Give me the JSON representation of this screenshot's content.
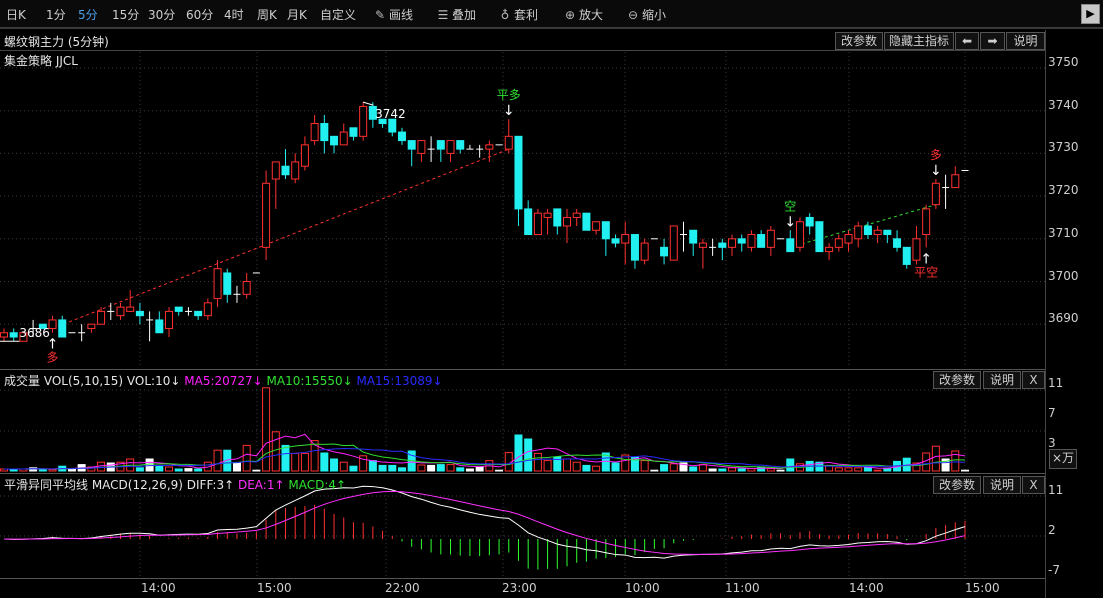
{
  "toolbar": {
    "periods": [
      "日K",
      "1分",
      "5分",
      "15分",
      "30分",
      "60分",
      "4时",
      "周K",
      "月K",
      "自定义"
    ],
    "selected_period": "5分",
    "tools": [
      {
        "label": "画线",
        "icon": "pencil-icon"
      },
      {
        "label": "叠加",
        "icon": "stack-icon"
      },
      {
        "label": "套利",
        "icon": "money-bag-icon"
      },
      {
        "label": "放大",
        "icon": "zoom-in-icon"
      },
      {
        "label": "缩小",
        "icon": "zoom-out-icon"
      }
    ],
    "scroll_right": "▶"
  },
  "main": {
    "title": "螺纹钢主力 (5分钟)",
    "strategy": "集金策略 JJCL",
    "buttons": {
      "params": "改参数",
      "hide": "隐藏主指标",
      "left": "⬅",
      "right": "➡",
      "help": "说明"
    },
    "price_axis": [
      3750,
      3740,
      3730,
      3720,
      3710,
      3700,
      3690
    ],
    "high_label": "3742",
    "low_label": "3686"
  },
  "volume_panel": {
    "name": "成交量 VOL(5,10,15) VOL:10↓",
    "ma5": "MA5:20727↓",
    "ma10": "MA10:15550↓",
    "ma15": "MA15:13089↓",
    "buttons": {
      "params": "改参数",
      "help": "说明",
      "close": "X"
    },
    "axis": [
      "11",
      "7",
      "3"
    ],
    "unit": "×万"
  },
  "macd_panel": {
    "name": "平滑异同平均线 MACD(12,26,9) DIFF:3↑",
    "dea": "DEA:1↑",
    "macd": "MACD:4↑",
    "buttons": {
      "params": "改参数",
      "help": "说明",
      "close": "X"
    },
    "axis": [
      "11",
      "2",
      "-7"
    ]
  },
  "time_axis": [
    "14:00",
    "15:00",
    "22:00",
    "23:00",
    "10:00",
    "11:00",
    "14:00",
    "15:00"
  ],
  "colors": {
    "up": "#ff3030",
    "down": "#22f0f0",
    "flat": "#ffffff",
    "ma5": "#ff20ff",
    "ma10": "#30e030",
    "ma15": "#2a2aff",
    "diff": "#ffffff",
    "dea": "#ff30ff",
    "macd_up": "#ff3030",
    "macd_down": "#30ff30",
    "selected": "#4a9ee8"
  },
  "chart_data": {
    "type": "candlestick",
    "ohlc": [
      [
        3687,
        3689,
        3686,
        3688
      ],
      [
        3688,
        3689,
        3686,
        3687
      ],
      [
        3686,
        3688,
        3686,
        3688
      ],
      [
        3689,
        3691,
        3687,
        3689
      ],
      [
        3690,
        3690,
        3689,
        3689
      ],
      [
        3689,
        3692,
        3688,
        3691
      ],
      [
        3691,
        3692,
        3687,
        3687
      ],
      [
        3688,
        3688,
        3688,
        3688
      ],
      [
        3688,
        3690,
        3686,
        3688
      ],
      [
        3689,
        3690,
        3688,
        3690
      ],
      [
        3690,
        3694,
        3690,
        3693
      ],
      [
        3693,
        3695,
        3691,
        3693
      ],
      [
        3692,
        3695,
        3691,
        3694
      ],
      [
        3693,
        3698,
        3693,
        3694
      ],
      [
        3693,
        3695,
        3690,
        3692
      ],
      [
        3691,
        3693,
        3686,
        3691
      ],
      [
        3691,
        3693,
        3688,
        3688
      ],
      [
        3689,
        3694,
        3687,
        3693
      ],
      [
        3694,
        3694,
        3692,
        3693
      ],
      [
        3693,
        3694,
        3692,
        3693
      ],
      [
        3693,
        3693,
        3691,
        3692
      ],
      [
        3692,
        3696,
        3691,
        3695
      ],
      [
        3696,
        3705,
        3694,
        3703
      ],
      [
        3702,
        3703,
        3695,
        3697
      ],
      [
        3697,
        3699,
        3695,
        3697
      ],
      [
        3697,
        3702,
        3696,
        3700
      ],
      [
        3702,
        3702,
        3702,
        3702
      ],
      [
        3708,
        3726,
        3705,
        3723
      ],
      [
        3724,
        3728,
        3717,
        3728
      ],
      [
        3727,
        3731,
        3724,
        3725
      ],
      [
        3724,
        3730,
        3723,
        3728
      ],
      [
        3727,
        3734,
        3726,
        3732
      ],
      [
        3733,
        3739,
        3732,
        3737
      ],
      [
        3737,
        3739,
        3730,
        3733
      ],
      [
        3734,
        3734,
        3730,
        3732
      ],
      [
        3732,
        3737,
        3732,
        3735
      ],
      [
        3736,
        3736,
        3733,
        3734
      ],
      [
        3734,
        3742,
        3733,
        3741
      ],
      [
        3741,
        3742,
        3736,
        3738
      ],
      [
        3738,
        3738,
        3736,
        3737
      ],
      [
        3738,
        3738,
        3734,
        3735
      ],
      [
        3735,
        3736,
        3732,
        3733
      ],
      [
        3733,
        3733,
        3727,
        3731
      ],
      [
        3730,
        3733,
        3728,
        3733
      ],
      [
        3731,
        3734,
        3728,
        3731
      ],
      [
        3733,
        3733,
        3728,
        3731
      ],
      [
        3730,
        3733,
        3728,
        3733
      ],
      [
        3733,
        3733,
        3730,
        3731
      ],
      [
        3731,
        3732,
        3731,
        3731
      ],
      [
        3731,
        3732,
        3729,
        3731
      ],
      [
        3731,
        3733,
        3728,
        3732
      ],
      [
        3732,
        3732,
        3732,
        3732
      ],
      [
        3731,
        3738,
        3730,
        3734
      ],
      [
        3734,
        3734,
        3713,
        3717
      ],
      [
        3717,
        3719,
        3711,
        3711
      ],
      [
        3711,
        3717,
        3711,
        3716
      ],
      [
        3715,
        3717,
        3711,
        3716
      ],
      [
        3717,
        3717,
        3711,
        3713
      ],
      [
        3713,
        3717,
        3709,
        3715
      ],
      [
        3715,
        3717,
        3713,
        3716
      ],
      [
        3716,
        3716,
        3712,
        3712
      ],
      [
        3712,
        3714,
        3711,
        3714
      ],
      [
        3714,
        3714,
        3706,
        3710
      ],
      [
        3710,
        3711,
        3708,
        3709
      ],
      [
        3709,
        3714,
        3704,
        3711
      ],
      [
        3711,
        3711,
        3703,
        3705
      ],
      [
        3705,
        3710,
        3704,
        3709
      ],
      [
        3710,
        3710,
        3710,
        3710
      ],
      [
        3708,
        3710,
        3704,
        3706
      ],
      [
        3705,
        3713,
        3705,
        3713
      ],
      [
        3711,
        3714,
        3707,
        3711
      ],
      [
        3712,
        3712,
        3706,
        3709
      ],
      [
        3708,
        3710,
        3703,
        3709
      ],
      [
        3708,
        3710,
        3706,
        3708
      ],
      [
        3709,
        3710,
        3705,
        3708
      ],
      [
        3708,
        3711,
        3706,
        3710
      ],
      [
        3710,
        3711,
        3707,
        3709
      ],
      [
        3708,
        3712,
        3707,
        3711
      ],
      [
        3711,
        3712,
        3708,
        3708
      ],
      [
        3708,
        3713,
        3706,
        3712
      ],
      [
        3710,
        3710,
        3710,
        3710
      ],
      [
        3710,
        3712,
        3707,
        3707
      ],
      [
        3708,
        3715,
        3707,
        3714
      ],
      [
        3715,
        3716,
        3711,
        3713
      ],
      [
        3714,
        3714,
        3707,
        3707
      ],
      [
        3707,
        3709,
        3705,
        3708
      ],
      [
        3708,
        3711,
        3707,
        3710
      ],
      [
        3709,
        3712,
        3707,
        3711
      ],
      [
        3710,
        3714,
        3708,
        3713
      ],
      [
        3713,
        3714,
        3710,
        3711
      ],
      [
        3711,
        3713,
        3709,
        3712
      ],
      [
        3712,
        3712,
        3709,
        3711
      ],
      [
        3710,
        3712,
        3707,
        3708
      ],
      [
        3708,
        3708,
        3703,
        3704
      ],
      [
        3705,
        3713,
        3704,
        3710
      ],
      [
        3711,
        3718,
        3708,
        3717
      ],
      [
        3718,
        3724,
        3717,
        3723
      ],
      [
        3722,
        3725,
        3717,
        3722
      ],
      [
        3722,
        3727,
        3722,
        3725
      ],
      [
        3726,
        3726,
        3726,
        3726
      ]
    ],
    "volume_wan": [
      0.25,
      0.25,
      0.25,
      0.4,
      0.17,
      0.17,
      0.6,
      0.25,
      0.8,
      0.5,
      1.1,
      1.0,
      1.1,
      1.5,
      0.4,
      1.5,
      0.6,
      0.5,
      0.25,
      0.3,
      0.25,
      1.1,
      2.6,
      2.6,
      1.0,
      3.2,
      0.1,
      10.4,
      4.9,
      3.2,
      2.2,
      2.2,
      3.8,
      2.25,
      1.5,
      1.1,
      0.6,
      1.9,
      1.3,
      0.7,
      0.7,
      0.4,
      2.5,
      0.75,
      0.7,
      0.8,
      0.8,
      0.4,
      0.25,
      0.5,
      1.3,
      0.1,
      2.3,
      4.5,
      4.0,
      2.2,
      1.3,
      1.75,
      1.5,
      1.1,
      0.7,
      0.6,
      2.25,
      1.0,
      2.0,
      1.75,
      1.3,
      0.1,
      0.8,
      0.9,
      1.0,
      0.5,
      0.8,
      0.25,
      0.25,
      0.4,
      0.25,
      0.3,
      0.5,
      0.3,
      0.1,
      1.5,
      0.9,
      1.2,
      1.1,
      0.7,
      0.4,
      0.4,
      0.4,
      0.5,
      0.1,
      0.35,
      1.2,
      1.6,
      1.0,
      2.25,
      3.1,
      1.5,
      2.5,
      0.1
    ],
    "price_range": [
      3680,
      3752
    ],
    "volume_range": [
      0,
      12
    ],
    "macd_range": [
      -9,
      13
    ],
    "signals": [
      {
        "label": "多",
        "index": 5,
        "side": "below",
        "color": "#ff3030"
      },
      {
        "label": "平多",
        "index": 52,
        "side": "above",
        "color": "#30e030"
      },
      {
        "label": "空",
        "index": 81,
        "side": "above",
        "color": "#30e030"
      },
      {
        "label": "平空",
        "index": 95,
        "side": "below",
        "color": "#ff3030"
      },
      {
        "label": "多",
        "index": 96,
        "side": "above",
        "color": "#ff3030"
      }
    ],
    "trades": [
      {
        "from": 5,
        "to": 52,
        "from_price": 3689,
        "to_price": 3731,
        "color": "#ff3030"
      },
      {
        "from": 81,
        "to": 96,
        "from_price": 3708,
        "to_price": 3718,
        "color": "#30e030"
      }
    ],
    "high": {
      "index": 37,
      "price": 3742
    },
    "low": {
      "index": 2,
      "price": 3686
    }
  }
}
